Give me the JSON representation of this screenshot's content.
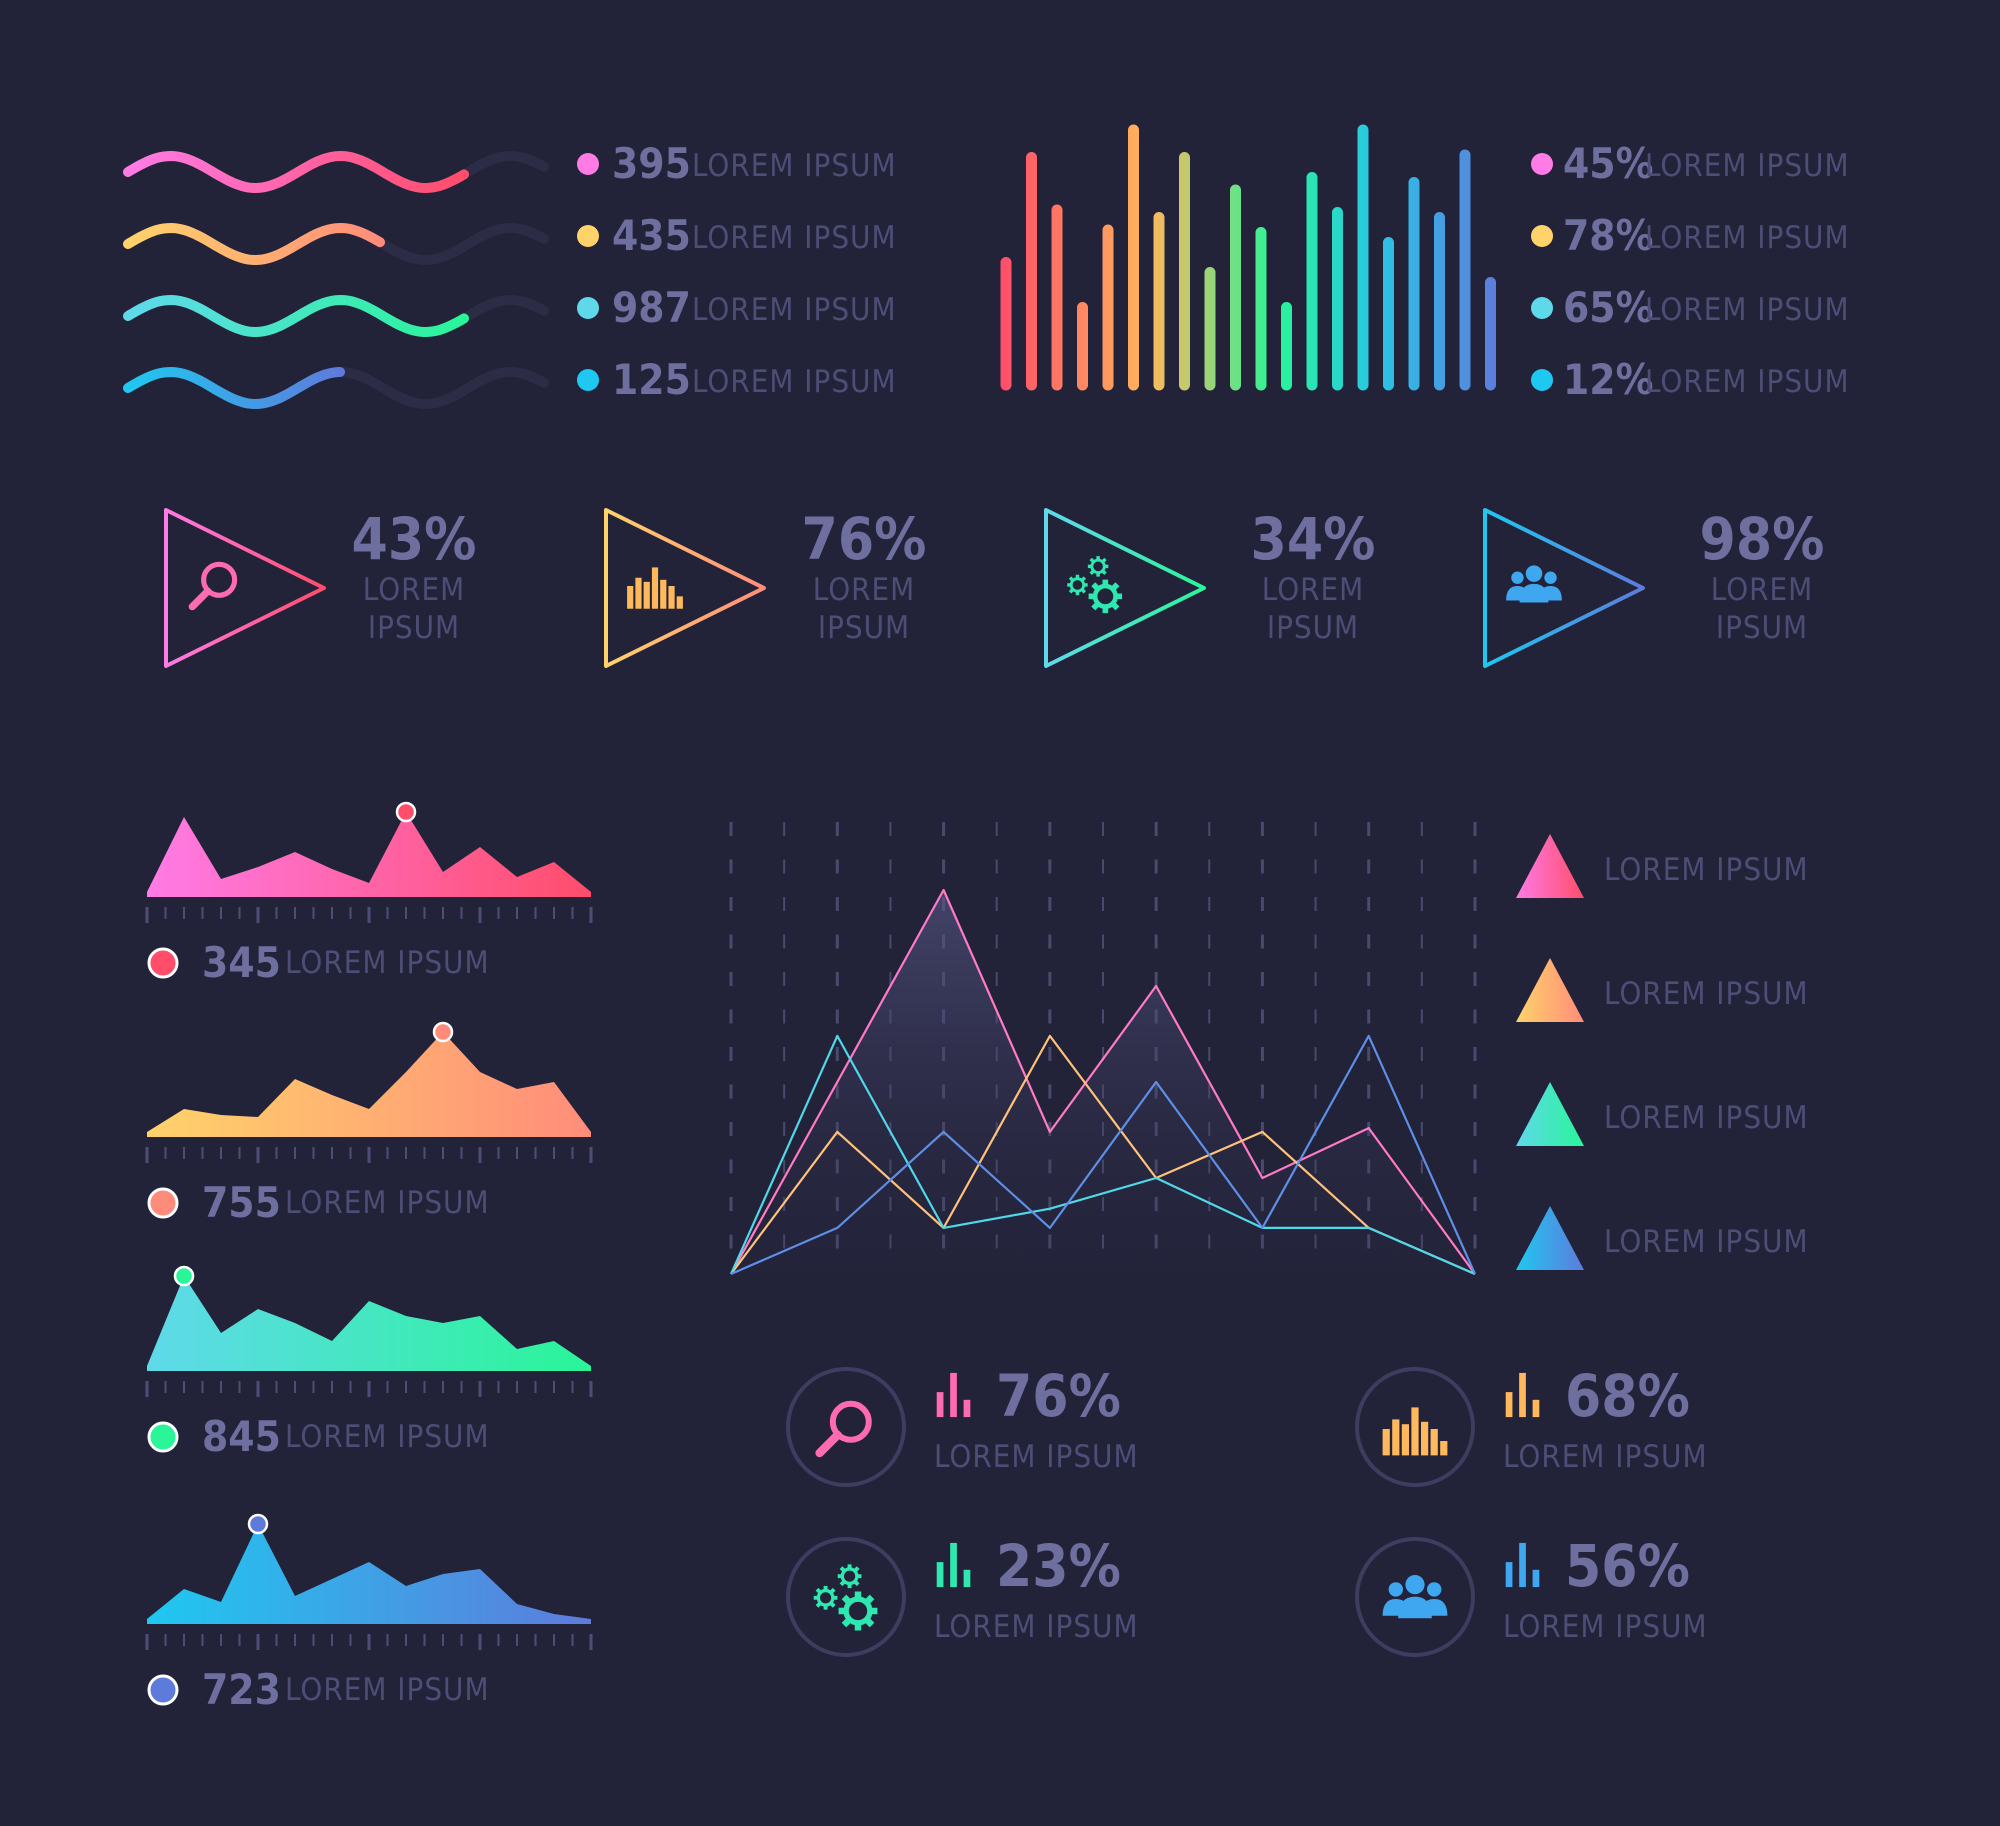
{
  "colors": {
    "bg": "#222239",
    "pink": [
      "#ff7be6",
      "#ff4d6a"
    ],
    "orange": [
      "#ffd36a",
      "#ff8c7a"
    ],
    "green": [
      "#5fd9ea",
      "#2af598"
    ],
    "blue": [
      "#1fc8f0",
      "#5e7bdc"
    ]
  },
  "waves": {
    "items": [
      {
        "value": "395",
        "label": "LOREM IPSUM",
        "color": "pink"
      },
      {
        "value": "435",
        "label": "LOREM IPSUM",
        "color": "orange"
      },
      {
        "value": "987",
        "label": "LOREM IPSUM",
        "color": "green"
      },
      {
        "value": "125",
        "label": "LOREM IPSUM",
        "color": "blue"
      }
    ]
  },
  "bars_legend": {
    "items": [
      {
        "value": "45%",
        "label": "LOREM IPSUM",
        "color": "pink"
      },
      {
        "value": "78%",
        "label": "LOREM IPSUM",
        "color": "orange"
      },
      {
        "value": "65%",
        "label": "LOREM IPSUM",
        "color": "green"
      },
      {
        "value": "12%",
        "label": "LOREM IPSUM",
        "color": "blue"
      }
    ]
  },
  "triangles": [
    {
      "value": "43%",
      "line1": "LOREM",
      "line2": "IPSUM",
      "icon": "search-icon",
      "color": "pink"
    },
    {
      "value": "76%",
      "line1": "LOREM",
      "line2": "IPSUM",
      "icon": "bar-chart-icon",
      "color": "orange"
    },
    {
      "value": "34%",
      "line1": "LOREM",
      "line2": "IPSUM",
      "icon": "gears-icon",
      "color": "green"
    },
    {
      "value": "98%",
      "line1": "LOREM",
      "line2": "IPSUM",
      "icon": "users-icon",
      "color": "blue"
    }
  ],
  "area_legends": [
    {
      "value": "345",
      "label": "LOREM IPSUM",
      "color": "pink"
    },
    {
      "value": "755",
      "label": "LOREM IPSUM",
      "color": "orange"
    },
    {
      "value": "845",
      "label": "LOREM IPSUM",
      "color": "green"
    },
    {
      "value": "723",
      "label": "LOREM IPSUM",
      "color": "blue"
    }
  ],
  "mountain_legend": [
    {
      "label": "LOREM IPSUM",
      "color": "pink"
    },
    {
      "label": "LOREM IPSUM",
      "color": "orange"
    },
    {
      "label": "LOREM IPSUM",
      "color": "green"
    },
    {
      "label": "LOREM IPSUM",
      "color": "blue"
    }
  ],
  "stats": [
    {
      "value": "76%",
      "label": "LOREM IPSUM",
      "icon": "search-icon",
      "color": "pink"
    },
    {
      "value": "68%",
      "label": "LOREM IPSUM",
      "icon": "bar-chart-icon",
      "color": "orange"
    },
    {
      "value": "23%",
      "label": "LOREM IPSUM",
      "icon": "gears-icon",
      "color": "green"
    },
    {
      "value": "56%",
      "label": "LOREM IPSUM",
      "icon": "users-icon",
      "color": "blue"
    }
  ],
  "chart_data": [
    {
      "type": "line",
      "title": "",
      "series": [
        {
          "values": [
            0.2,
            0.8,
            0.2,
            0.8,
            0.2,
            0.8,
            0.2,
            0.8,
            0.2
          ],
          "color": "pink"
        },
        {
          "values": [
            0.2,
            0.8,
            0.2,
            0.8,
            0.2,
            0.8,
            0.2
          ],
          "color": "orange"
        },
        {
          "values": [
            0.2,
            0.8,
            0.2,
            0.8,
            0.2,
            0.8,
            0.2,
            0.8,
            0.2
          ],
          "color": "green"
        },
        {
          "values": [
            0.2,
            0.8,
            0.2,
            0.8,
            0.2,
            0.6,
            0.2
          ],
          "color": "blue"
        }
      ]
    },
    {
      "type": "bar",
      "title": "",
      "values": [
        49,
        91,
        70,
        31,
        62,
        102,
        67,
        91,
        45,
        78,
        61,
        31,
        83,
        69,
        102,
        57,
        81,
        67,
        92,
        41
      ]
    },
    {
      "type": "area",
      "title": "",
      "x": [
        0,
        1,
        2,
        3,
        4,
        5,
        6,
        7,
        8,
        9,
        10,
        11,
        12
      ],
      "series": [
        {
          "name": "345",
          "values": [
            5,
            80,
            18,
            30,
            45,
            28,
            14,
            85,
            25,
            50,
            20,
            35,
            5
          ],
          "peak_index": 7,
          "color": "pink"
        },
        {
          "name": "755",
          "values": [
            5,
            28,
            22,
            20,
            58,
            42,
            28,
            65,
            105,
            65,
            48,
            55,
            5
          ],
          "peak_index": 8,
          "color": "orange"
        },
        {
          "name": "845",
          "values": [
            5,
            95,
            38,
            62,
            48,
            30,
            70,
            55,
            48,
            55,
            22,
            30,
            5
          ],
          "peak_index": 1,
          "color": "green"
        },
        {
          "name": "723",
          "values": [
            5,
            35,
            22,
            100,
            28,
            45,
            62,
            38,
            50,
            55,
            20,
            10,
            5
          ],
          "peak_index": 3,
          "color": "blue"
        }
      ]
    },
    {
      "type": "line",
      "title": "",
      "x": [
        0,
        1,
        2,
        3,
        4,
        5,
        6,
        7
      ],
      "ylim": [
        0,
        100
      ],
      "series": [
        {
          "name": "LOREM IPSUM",
          "values": [
            0,
            50,
            100,
            37,
            75,
            25,
            38,
            0
          ],
          "color": "pink"
        },
        {
          "name": "LOREM IPSUM",
          "values": [
            0,
            37,
            12,
            62,
            25,
            37,
            12,
            0
          ],
          "color": "orange"
        },
        {
          "name": "LOREM IPSUM",
          "values": [
            0,
            62,
            12,
            17,
            25,
            12,
            12,
            0
          ],
          "color": "green"
        },
        {
          "name": "LOREM IPSUM",
          "values": [
            0,
            12,
            37,
            12,
            50,
            12,
            62,
            0
          ],
          "color": "blue"
        }
      ]
    }
  ]
}
